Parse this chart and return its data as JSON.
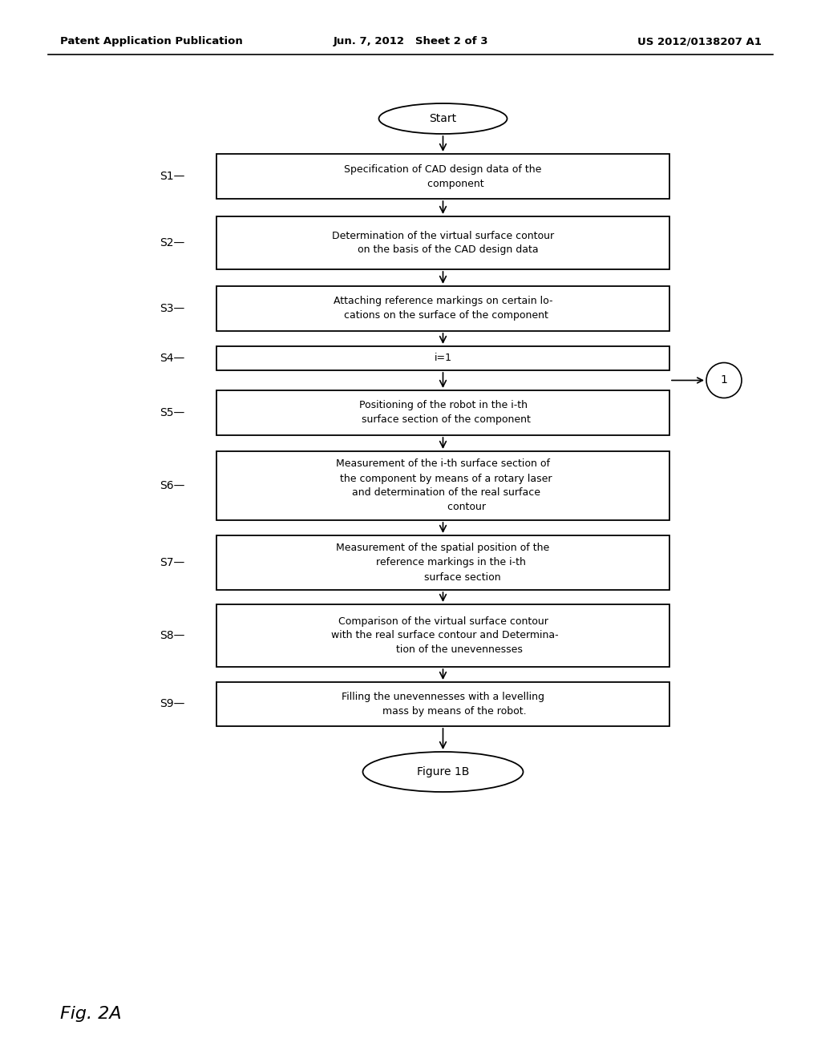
{
  "bg_color": "#ffffff",
  "header_left": "Patent Application Publication",
  "header_center": "Jun. 7, 2012   Sheet 2 of 3",
  "header_right": "US 2012/0138207 A1",
  "footer_label": "Fig. 2A",
  "start_label": "Start",
  "end_label": "Figure 1B",
  "steps": [
    {
      "id": "S1",
      "text": "Specification of CAD design data of the\n        component"
    },
    {
      "id": "S2",
      "text": "Determination of the virtual surface contour\n   on the basis of the CAD design data"
    },
    {
      "id": "S3",
      "text": "Attaching reference markings on certain lo-\n  cations on the surface of the component"
    },
    {
      "id": "S4",
      "text": "i=1"
    },
    {
      "id": "S5",
      "text": "Positioning of the robot in the i-th\n  surface section of the component"
    },
    {
      "id": "S6",
      "text": "Measurement of the i-th surface section of\n  the component by means of a rotary laser\n  and determination of the real surface\n               contour"
    },
    {
      "id": "S7",
      "text": "Measurement of the spatial position of the\n     reference markings in the i-th\n            surface section"
    },
    {
      "id": "S8",
      "text": "Comparison of the virtual surface contour\n with the real surface contour and Determina-\n          tion of the unevennesses"
    },
    {
      "id": "S9",
      "text": "Filling the unevennesses with a levelling\n       mass by means of the robot."
    }
  ],
  "font_size": 9.0,
  "label_font_size": 10,
  "circle_loop_label": "1"
}
